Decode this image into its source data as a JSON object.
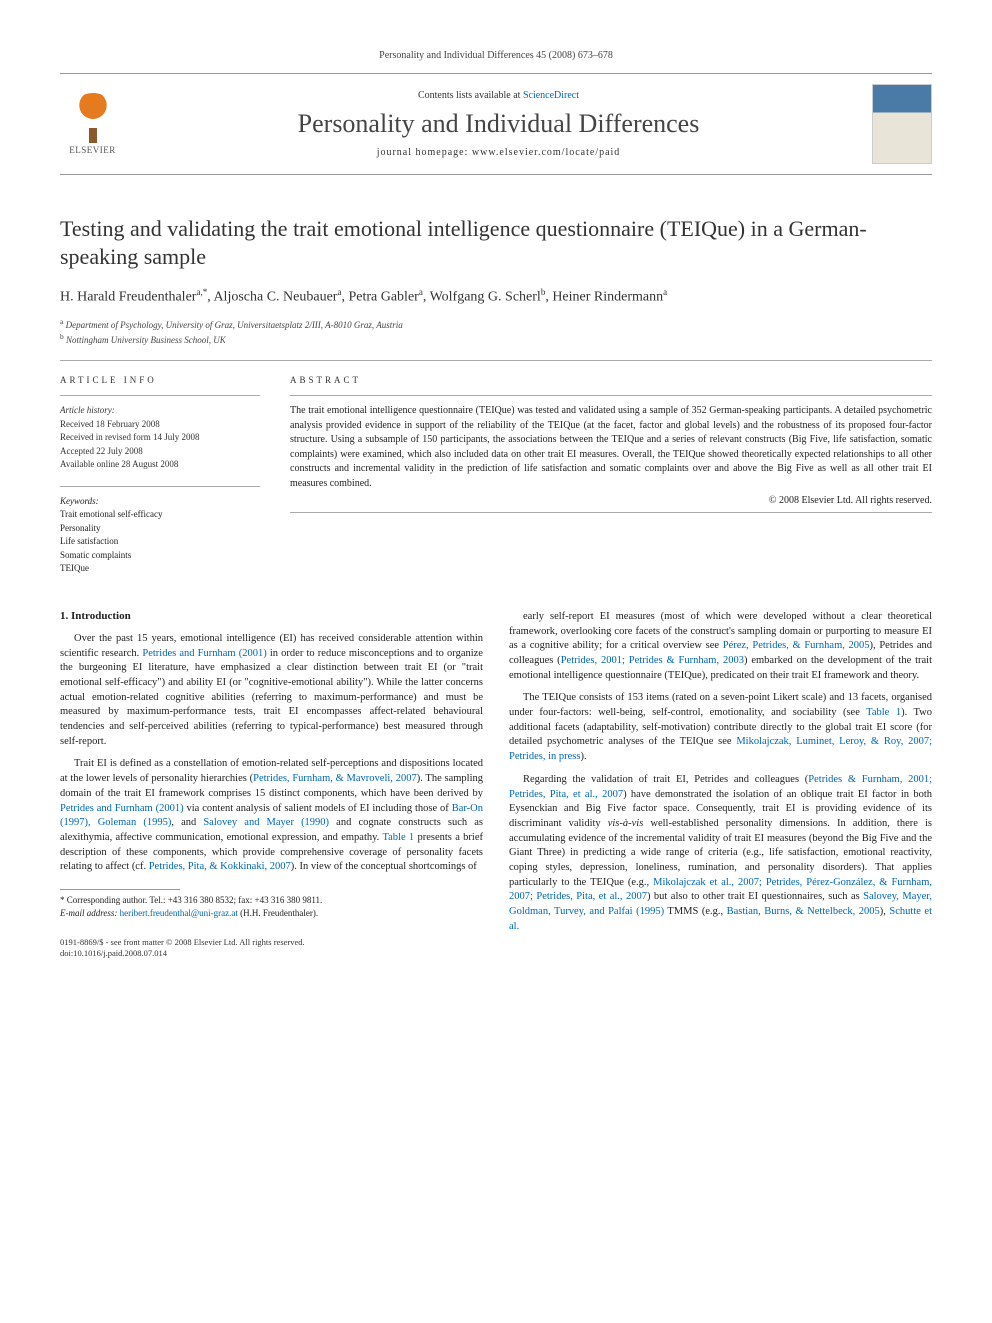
{
  "header": {
    "citation": "Personality and Individual Differences 45 (2008) 673–678"
  },
  "masthead": {
    "publisher": "ELSEVIER",
    "contents_prefix": "Contents lists available at ",
    "contents_link": "ScienceDirect",
    "journal": "Personality and Individual Differences",
    "homepage_label": "journal homepage: ",
    "homepage_url": "www.elsevier.com/locate/paid"
  },
  "article": {
    "title": "Testing and validating the trait emotional intelligence questionnaire (TEIQue) in a German-speaking sample",
    "authors_html": "H. Harald Freudenthaler",
    "authors": [
      {
        "name": "H. Harald Freudenthaler",
        "marks": "a,*"
      },
      {
        "name": "Aljoscha C. Neubauer",
        "marks": "a"
      },
      {
        "name": "Petra Gabler",
        "marks": "a"
      },
      {
        "name": "Wolfgang G. Scherl",
        "marks": "b"
      },
      {
        "name": "Heiner Rindermann",
        "marks": "a"
      }
    ],
    "affiliations": [
      {
        "mark": "a",
        "text": "Department of Psychology, University of Graz, Universitaetsplatz 2/III, A-8010 Graz, Austria"
      },
      {
        "mark": "b",
        "text": "Nottingham University Business School, UK"
      }
    ]
  },
  "info": {
    "heading": "article info",
    "history_label": "Article history:",
    "history": [
      "Received 18 February 2008",
      "Received in revised form 14 July 2008",
      "Accepted 22 July 2008",
      "Available online 28 August 2008"
    ],
    "keywords_label": "Keywords:",
    "keywords": [
      "Trait emotional self-efficacy",
      "Personality",
      "Life satisfaction",
      "Somatic complaints",
      "TEIQue"
    ]
  },
  "abstract": {
    "heading": "abstract",
    "text": "The trait emotional intelligence questionnaire (TEIQue) was tested and validated using a sample of 352 German-speaking participants. A detailed psychometric analysis provided evidence in support of the reliability of the TEIQue (at the facet, factor and global levels) and the robustness of its proposed four-factor structure. Using a subsample of 150 participants, the associations between the TEIQue and a series of relevant constructs (Big Five, life satisfaction, somatic complaints) were examined, which also included data on other trait EI measures. Overall, the TEIQue showed theoretically expected relationships to all other constructs and incremental validity in the prediction of life satisfaction and somatic complaints over and above the Big Five as well as all other trait EI measures combined.",
    "copyright": "© 2008 Elsevier Ltd. All rights reserved."
  },
  "body": {
    "section1_heading": "1. Introduction",
    "left_paras": [
      "Over the past 15 years, emotional intelligence (EI) has received considerable attention within scientific research. <span class=\"cite\">Petrides and Furnham (2001)</span> in order to reduce misconceptions and to organize the burgeoning EI literature, have emphasized a clear distinction between trait EI (or \"trait emotional self-efficacy\") and ability EI (or \"cognitive-emotional ability\"). While the latter concerns actual emotion-related cognitive abilities (referring to maximum-performance) and must be measured by maximum-performance tests, trait EI encompasses affect-related behavioural tendencies and self-perceived abilities (referring to typical-performance) best measured through self-report.",
      "Trait EI is defined as a constellation of emotion-related self-perceptions and dispositions located at the lower levels of personality hierarchies (<span class=\"cite\">Petrides, Furnham, & Mavroveli, 2007</span>). The sampling domain of the trait EI framework comprises 15 distinct components, which have been derived by <span class=\"cite\">Petrides and Furnham (2001)</span> via content analysis of salient models of EI including those of <span class=\"cite\">Bar-On (1997), Goleman (1995)</span>, and <span class=\"cite\">Salovey and Mayer (1990)</span> and cognate constructs such as alexithymia, affective communication, emotional expression, and empathy. <span class=\"cite\">Table 1</span> presents a brief description of these components, which provide comprehensive coverage of personality facets relating to affect (cf. <span class=\"cite\">Petrides, Pita, & Kokkinaki, 2007</span>). In view of the conceptual shortcomings of"
    ],
    "right_paras": [
      "early self-report EI measures (most of which were developed without a clear theoretical framework, overlooking core facets of the construct's sampling domain or purporting to measure EI as a cognitive ability; for a critical overview see <span class=\"cite\">Pérez, Petrides, & Furnham, 2005</span>), Petrides and colleagues (<span class=\"cite\">Petrides, 2001; Petrides & Furnham, 2003</span>) embarked on the development of the trait emotional intelligence questionnaire (TEIQue), predicated on their trait EI framework and theory.",
      "The TEIQue consists of 153 items (rated on a seven-point Likert scale) and 13 facets, organised under four-factors: well-being, self-control, emotionality, and sociability (see <span class=\"cite\">Table 1</span>). Two additional facets (adaptability, self-motivation) contribute directly to the global trait EI score (for detailed psychometric analyses of the TEIQue see <span class=\"cite\">Mikolajczak, Luminet, Leroy, & Roy, 2007; Petrides, in press</span>).",
      "Regarding the validation of trait EI, Petrides and colleagues (<span class=\"cite\">Petrides & Furnham, 2001; Petrides, Pita, et al., 2007</span>) have demonstrated the isolation of an oblique trait EI factor in both Eysenckian and Big Five factor space. Consequently, trait EI is providing evidence of its discriminant validity <i>vis-à-vis</i> well-established personality dimensions. In addition, there is accumulating evidence of the incremental validity of trait EI measures (beyond the Big Five and the Giant Three) in predicting a wide range of criteria (e.g., life satisfaction, emotional reactivity, coping styles, depression, loneliness, rumination, and personality disorders). That applies particularly to the TEIQue (e.g., <span class=\"cite\">Mikolajczak et al., 2007; Petrides, Pérez-González, & Furnham, 2007; Petrides, Pita, et al., 2007</span>) but also to other trait EI questionnaires, such as <span class=\"cite\">Salovey, Mayer, Goldman, Turvey, and Palfai (1995)</span> TMMS (e.g., <span class=\"cite\">Bastian, Burns, & Nettelbeck, 2005</span>), <span class=\"cite\">Schutte et al.</span>"
    ]
  },
  "correspondence": {
    "line1": "* Corresponding author. Tel.: +43 316 380 8532; fax: +43 316 380 9811.",
    "email_label": "E-mail address:",
    "email": "heribert.freudenthal@uni-graz.at",
    "email_suffix": "(H.H. Freudenthaler)."
  },
  "footer": {
    "issn_line": "0191-8869/$ - see front matter © 2008 Elsevier Ltd. All rights reserved.",
    "doi_line": "doi:10.1016/j.paid.2008.07.014"
  }
}
